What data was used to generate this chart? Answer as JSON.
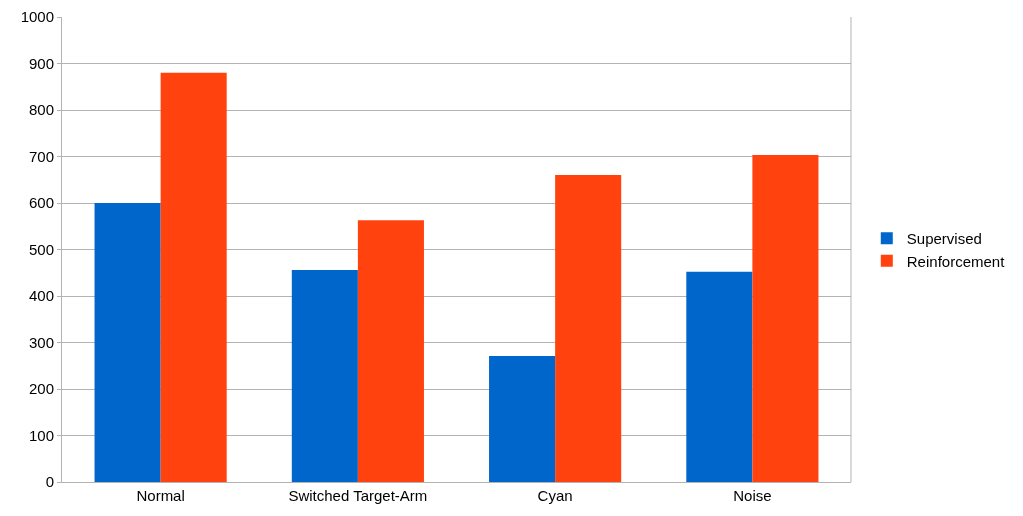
{
  "chart_data": {
    "type": "bar",
    "categories": [
      "Normal",
      "Switched Target-Arm",
      "Cyan",
      "Noise"
    ],
    "series": [
      {
        "name": "Supervised",
        "color": "#0066cc",
        "values": [
          600,
          456,
          271,
          452
        ]
      },
      {
        "name": "Reinforcement",
        "color": "#ff420e",
        "values": [
          880,
          563,
          660,
          703
        ]
      }
    ],
    "ylim": [
      0,
      1000
    ],
    "yticks": [
      0,
      100,
      200,
      300,
      400,
      500,
      600,
      700,
      800,
      900,
      1000
    ],
    "grid": "y",
    "legend": "right"
  }
}
